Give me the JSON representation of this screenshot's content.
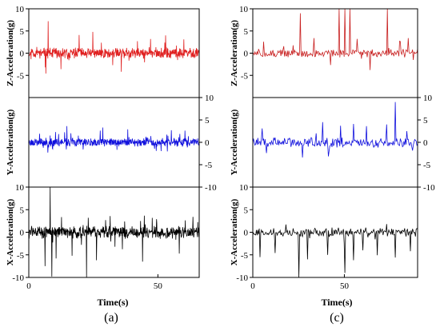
{
  "chart_data": [
    {
      "type": "line",
      "label": "(a)",
      "xlabel": "Time(s)",
      "xlim": [
        0,
        66
      ],
      "xticks": [
        0,
        50
      ],
      "panels": [
        {
          "key": "Z",
          "ylabel": "Z-Acceleration(g)",
          "ylim": [
            -10,
            10
          ],
          "yticks": [
            -5,
            0,
            5,
            10
          ],
          "color": "#e02020",
          "y_axis_side": "left",
          "series": [
            {
              "seed": 11,
              "n": 600,
              "amp": 0.9,
              "spikes": [
                [
                  7.5,
                  7.2
                ],
                [
                  6.6,
                  -4.6
                ],
                [
                  19.5,
                  4.1
                ],
                [
                  24.8,
                  4.8
                ],
                [
                  35.8,
                  -4.2
                ],
                [
                  47.2,
                  3.2
                ],
                [
                  53.0,
                  4.0
                ],
                [
                  60.1,
                  3.1
                ],
                [
                  12.4,
                  -3.6
                ]
              ]
            }
          ]
        },
        {
          "key": "Y",
          "ylabel": "Y-Acceleration(g)",
          "ylim": [
            -10,
            10
          ],
          "yticks": [
            -10,
            -5,
            0,
            5,
            10
          ],
          "color": "#1010dd",
          "y_axis_side": "right",
          "series": [
            {
              "seed": 23,
              "n": 600,
              "amp": 0.75,
              "spikes": [
                [
                  14.8,
                  3.6
                ],
                [
                  28.6,
                  3.3
                ],
                [
                  21.0,
                  -1.6
                ],
                [
                  38.3,
                  2.9
                ],
                [
                  55.2,
                  2.7
                ],
                [
                  60.5,
                  2.6
                ],
                [
                  9.1,
                  -1.4
                ]
              ]
            }
          ]
        },
        {
          "key": "X",
          "ylabel": "X-Acceleration(g)",
          "ylim": [
            -10,
            10
          ],
          "yticks": [
            -10,
            -5,
            0,
            5,
            10
          ],
          "color": "#000000",
          "y_axis_side": "left",
          "series": [
            {
              "seed": 37,
              "n": 600,
              "amp": 1.1,
              "spikes": [
                [
                  8.3,
                  10.0
                ],
                [
                  8.9,
                  -9.8
                ],
                [
                  6.3,
                  -7.5
                ],
                [
                  10.6,
                  -5.8
                ],
                [
                  22.4,
                  -10.0
                ],
                [
                  26.2,
                  -6.2
                ],
                [
                  31.5,
                  3.6
                ],
                [
                  44.1,
                  -6.5
                ],
                [
                  49.5,
                  2.9
                ],
                [
                  58.3,
                  -4.7
                ],
                [
                  63.6,
                  3.4
                ],
                [
                  16.8,
                  -5.2
                ]
              ]
            }
          ]
        }
      ]
    },
    {
      "type": "line",
      "label": "(c)",
      "xlabel": "Time(s)",
      "xlim": [
        0,
        90
      ],
      "xticks": [
        0,
        50
      ],
      "panels": [
        {
          "key": "Z",
          "ylabel": "Z-Acceleration(g)",
          "ylim": [
            -10,
            10
          ],
          "yticks": [
            -5,
            0,
            5,
            10
          ],
          "color": "#c82020",
          "y_axis_side": "left",
          "series": [
            {
              "seed": 51,
              "n": 230,
              "amp": 0.75,
              "spikes": [
                [
                  26.0,
                  9.0
                ],
                [
                  47.0,
                  10.0
                ],
                [
                  50.5,
                  10.0
                ],
                [
                  53.0,
                  10.0
                ],
                [
                  73.5,
                  10.0
                ],
                [
                  64.0,
                  -3.8
                ],
                [
                  33.5,
                  3.4
                ],
                [
                  57.0,
                  3.2
                ],
                [
                  80.0,
                  2.7
                ],
                [
                  6.0,
                  2.6
                ],
                [
                  85.0,
                  3.4
                ]
              ]
            }
          ]
        },
        {
          "key": "Y",
          "ylabel": "Y-Acceleration(g)",
          "ylim": [
            -10,
            10
          ],
          "yticks": [
            -10,
            -5,
            0,
            5,
            10
          ],
          "color": "#1010dd",
          "y_axis_side": "right",
          "series": [
            {
              "seed": 63,
              "n": 230,
              "amp": 0.9,
              "spikes": [
                [
                  78.0,
                  9.0
                ],
                [
                  73.0,
                  4.0
                ],
                [
                  27.0,
                  -3.4
                ],
                [
                  38.0,
                  4.5
                ],
                [
                  48.0,
                  3.7
                ],
                [
                  55.0,
                  4.1
                ],
                [
                  62.0,
                  3.6
                ],
                [
                  5.0,
                  3.1
                ],
                [
                  84.0,
                  2.5
                ]
              ]
            }
          ]
        },
        {
          "key": "X",
          "ylabel": "X-Acceleration(g)",
          "ylim": [
            -10,
            10
          ],
          "yticks": [
            -10,
            -5,
            0,
            5,
            10
          ],
          "color": "#000000",
          "y_axis_side": "left",
          "series": [
            {
              "seed": 79,
              "n": 230,
              "amp": 0.8,
              "spikes": [
                [
                  25.3,
                  -10.0
                ],
                [
                  50.2,
                  -9.0
                ],
                [
                  30.0,
                  -6.0
                ],
                [
                  41.0,
                  -5.0
                ],
                [
                  55.0,
                  -6.2
                ],
                [
                  68.0,
                  -5.1
                ],
                [
                  78.0,
                  -5.6
                ],
                [
                  86.0,
                  -4.2
                ],
                [
                  12.0,
                  -4.6
                ],
                [
                  4.0,
                  -5.5
                ],
                [
                  60.0,
                  -4.0
                ],
                [
                  73.0,
                  1.8
                ]
              ]
            }
          ]
        }
      ]
    }
  ]
}
